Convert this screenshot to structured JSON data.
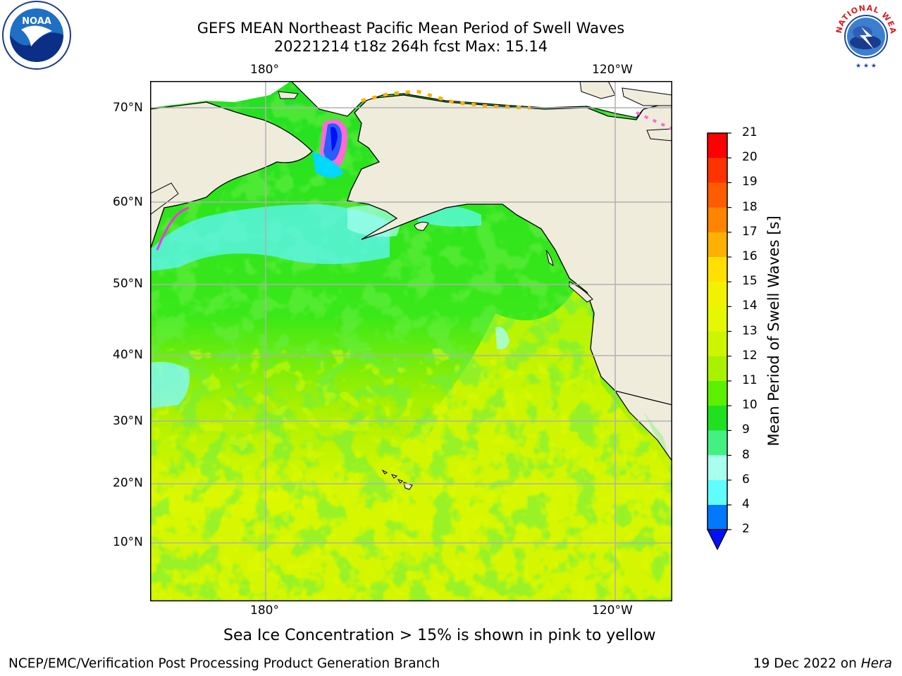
{
  "title": {
    "line1": "GEFS MEAN Northeast Pacific Mean Period of Swell Waves",
    "line2": "20221214 t18z 264h fcst   Max: 15.14"
  },
  "logos": {
    "left": {
      "icon": "noaa-logo",
      "text": "NOAA"
    },
    "right": {
      "icon": "national-weather-service-logo",
      "text": "NATIONAL WEATHER SERVICE"
    }
  },
  "map": {
    "longitude_labels": [
      "180°",
      "120°W"
    ],
    "latitude_labels": [
      "70°N",
      "60°N",
      "50°N",
      "40°N",
      "30°N",
      "20°N",
      "10°N"
    ],
    "colors": {
      "land": "#efecdc",
      "gridlines": "#b0b0b0",
      "coast": "#000000"
    }
  },
  "colorbar": {
    "title": "Mean Period of Swell Waves [s]",
    "ticks": [
      "21",
      "20",
      "19",
      "18",
      "17",
      "16",
      "15",
      "14",
      "13",
      "12",
      "11",
      "10",
      "9",
      "8",
      "6",
      "4",
      "2"
    ],
    "colors": [
      "#ff0000",
      "#ff3300",
      "#ff5c00",
      "#ff8400",
      "#ffb000",
      "#ffe000",
      "#f2f200",
      "#e6f800",
      "#cdf500",
      "#a8f200",
      "#5af000",
      "#20e020",
      "#44f084",
      "#a8fff0",
      "#60fdff",
      "#00f2ff",
      "#00c3ff",
      "#0078ff",
      "#0010f8"
    ]
  },
  "note": "Sea Ice Concentration > 15% is shown in pink to yellow",
  "footer": {
    "left": "NCEP/EMC/Verification Post Processing Product Generation Branch",
    "date": "19 Dec 2022 on ",
    "host": "Hera"
  }
}
